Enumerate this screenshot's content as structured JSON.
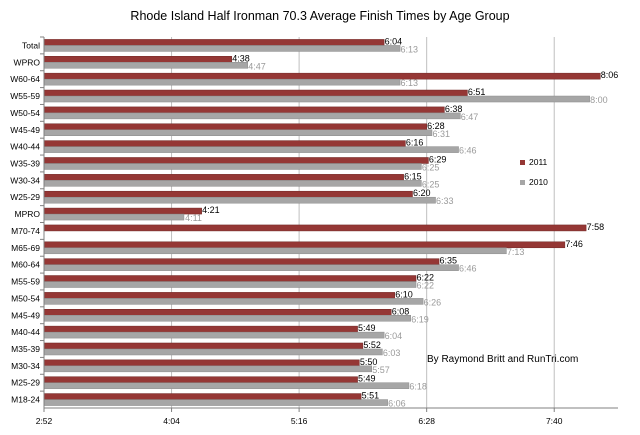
{
  "chart_data": {
    "type": "bar",
    "orientation": "horizontal",
    "title": "Rhode Island Half Ironman 70.3 Average Finish Times by Age Group",
    "annotation": "By Raymond Britt and RunTri.com",
    "x_unit": "h:mm",
    "xlim": [
      "2:52",
      "8:16"
    ],
    "x_ticks": [
      "2:52",
      "4:04",
      "5:16",
      "6:28",
      "7:40"
    ],
    "grid": "vertical",
    "legend_position": "right",
    "categories": [
      "Total",
      "WPRO",
      "W60-64",
      "W55-59",
      "W50-54",
      "W45-49",
      "W40-44",
      "W35-39",
      "W30-34",
      "W25-29",
      "MPRO",
      "M70-74",
      "M65-69",
      "M60-64",
      "M55-59",
      "M50-54",
      "M45-49",
      "M40-44",
      "M35-39",
      "M30-34",
      "M25-29",
      "M18-24"
    ],
    "series": [
      {
        "name": "2011",
        "color": "#953735",
        "values": [
          "6:04",
          "4:38",
          "8:06",
          "6:51",
          "6:38",
          "6:28",
          "6:16",
          "6:29",
          "6:15",
          "6:20",
          "4:21",
          "7:58",
          "7:46",
          "6:35",
          "6:22",
          "6:10",
          "6:08",
          "5:49",
          "5:52",
          "5:50",
          "5:49",
          "5:51"
        ]
      },
      {
        "name": "2010",
        "color": "#a6a6a6",
        "values": [
          "6:13",
          "4:47",
          "6:13",
          "8:00",
          "6:47",
          "6:31",
          "6:46",
          "6:25",
          "6:25",
          "6:33",
          "4:11",
          "",
          "7:13",
          "6:46",
          "6:22",
          "6:26",
          "6:19",
          "6:04",
          "6:03",
          "5:57",
          "6:18",
          "6:06"
        ]
      }
    ]
  }
}
